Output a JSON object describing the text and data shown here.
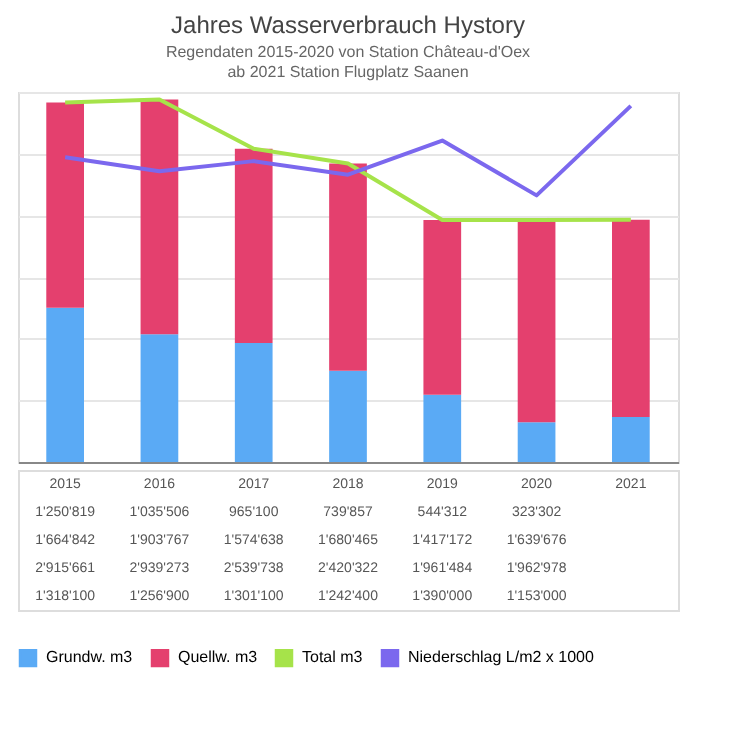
{
  "chart_data": {
    "type": "bar",
    "title": "Jahres Wasserverbrauch Hystory",
    "subtitle": [
      "Regendaten 2015-2020 von Station Château-d'Oex",
      "ab 2021 Station Flugplatz Saanen"
    ],
    "categories": [
      "2015",
      "2016",
      "2017",
      "2018",
      "2019",
      "2020",
      "2021"
    ],
    "stacked": true,
    "grid": "y",
    "legend": "bottom",
    "series": [
      {
        "name": "Grundw. m3",
        "color": "#5aaaf5",
        "values": [
          1250819,
          1035506,
          965100,
          739857,
          544312,
          323302,
          364000
        ],
        "value_labels": [
          "1'250'819",
          "1'035'506",
          "965'100",
          "739'857",
          "544'312",
          "323'302",
          null
        ]
      },
      {
        "name": "Quellw. m3",
        "color": "#e4406e",
        "values": [
          1664842,
          1903767,
          1574638,
          1680465,
          1417172,
          1639676,
          1601000
        ],
        "value_labels": [
          "1'664'842",
          "1'903'767",
          "1'574'638",
          "1'680'465",
          "1'417'172",
          "1'639'676",
          null
        ]
      },
      {
        "name": "Total m3",
        "type": "line",
        "color": "#a6e34a",
        "values": [
          2915661,
          2939273,
          2539738,
          2420322,
          1961484,
          1962978,
          1965000
        ],
        "value_labels": [
          "2'915'661",
          "2'939'273",
          "2'539'738",
          "2'420'322",
          "1'961'484",
          "1'962'978",
          null
        ]
      },
      {
        "name": "Niederschlag L/m2 x 1000",
        "type": "line",
        "axis": "y2",
        "color": "#7b68ee",
        "values": [
          1318100,
          1256900,
          1301100,
          1242400,
          1390000,
          1153000,
          1540000
        ],
        "value_labels": [
          "1'318'100",
          "1'256'900",
          "1'301'100",
          "1'242'400",
          "1'390'000",
          "1'153'000",
          null
        ]
      }
    ]
  }
}
